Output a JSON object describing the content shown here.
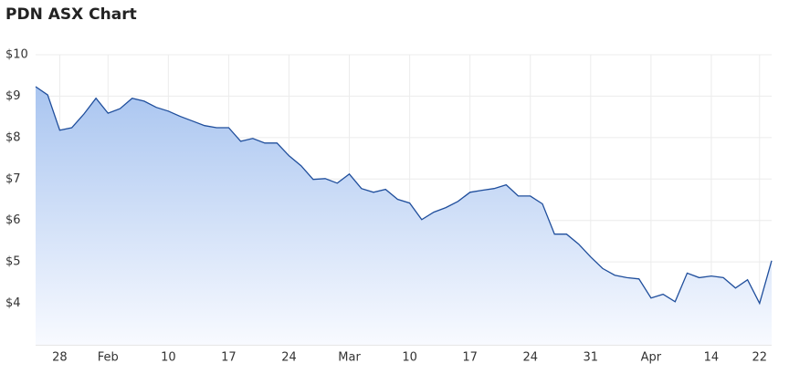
{
  "chart_data": {
    "type": "area",
    "title": "PDN ASX Chart",
    "categories": [
      null,
      null,
      "28",
      null,
      null,
      null,
      "Feb",
      null,
      null,
      null,
      null,
      "10",
      null,
      null,
      null,
      null,
      "17",
      null,
      null,
      null,
      null,
      "24",
      null,
      null,
      null,
      null,
      "Mar",
      null,
      null,
      null,
      null,
      "10",
      null,
      null,
      null,
      null,
      "17",
      null,
      null,
      null,
      null,
      "24",
      null,
      null,
      null,
      null,
      "31",
      null,
      null,
      null,
      null,
      "Apr",
      null,
      null,
      null,
      null,
      "14",
      null,
      null,
      null,
      "22",
      null
    ],
    "series": [
      {
        "color": "#1f4e9c",
        "values": [
          9.23,
          9.03,
          8.18,
          8.24,
          8.57,
          8.95,
          8.59,
          8.7,
          8.95,
          8.88,
          8.73,
          8.64,
          8.51,
          8.4,
          8.29,
          8.24,
          8.24,
          7.91,
          7.98,
          7.87,
          7.87,
          7.56,
          7.32,
          6.99,
          7.01,
          6.9,
          7.12,
          6.77,
          6.68,
          6.75,
          6.51,
          6.42,
          6.02,
          6.2,
          6.31,
          6.46,
          6.68,
          6.73,
          6.77,
          6.86,
          6.59,
          6.59,
          6.4,
          5.67,
          5.67,
          5.43,
          5.12,
          4.84,
          4.68,
          4.62,
          4.59,
          4.13,
          4.22,
          4.04,
          4.73,
          4.62,
          4.66,
          4.62,
          4.37,
          4.57,
          4.0,
          5.03
        ]
      }
    ],
    "ylim": [
      3,
      10
    ],
    "yticks": [
      {
        "value": 4,
        "label": "$4"
      },
      {
        "value": 5,
        "label": "$5"
      },
      {
        "value": 6,
        "label": "$6"
      },
      {
        "value": 7,
        "label": "$7"
      },
      {
        "value": 8,
        "label": "$8"
      },
      {
        "value": 9,
        "label": "$9"
      },
      {
        "value": 10,
        "label": "$10"
      }
    ],
    "grid": true
  }
}
